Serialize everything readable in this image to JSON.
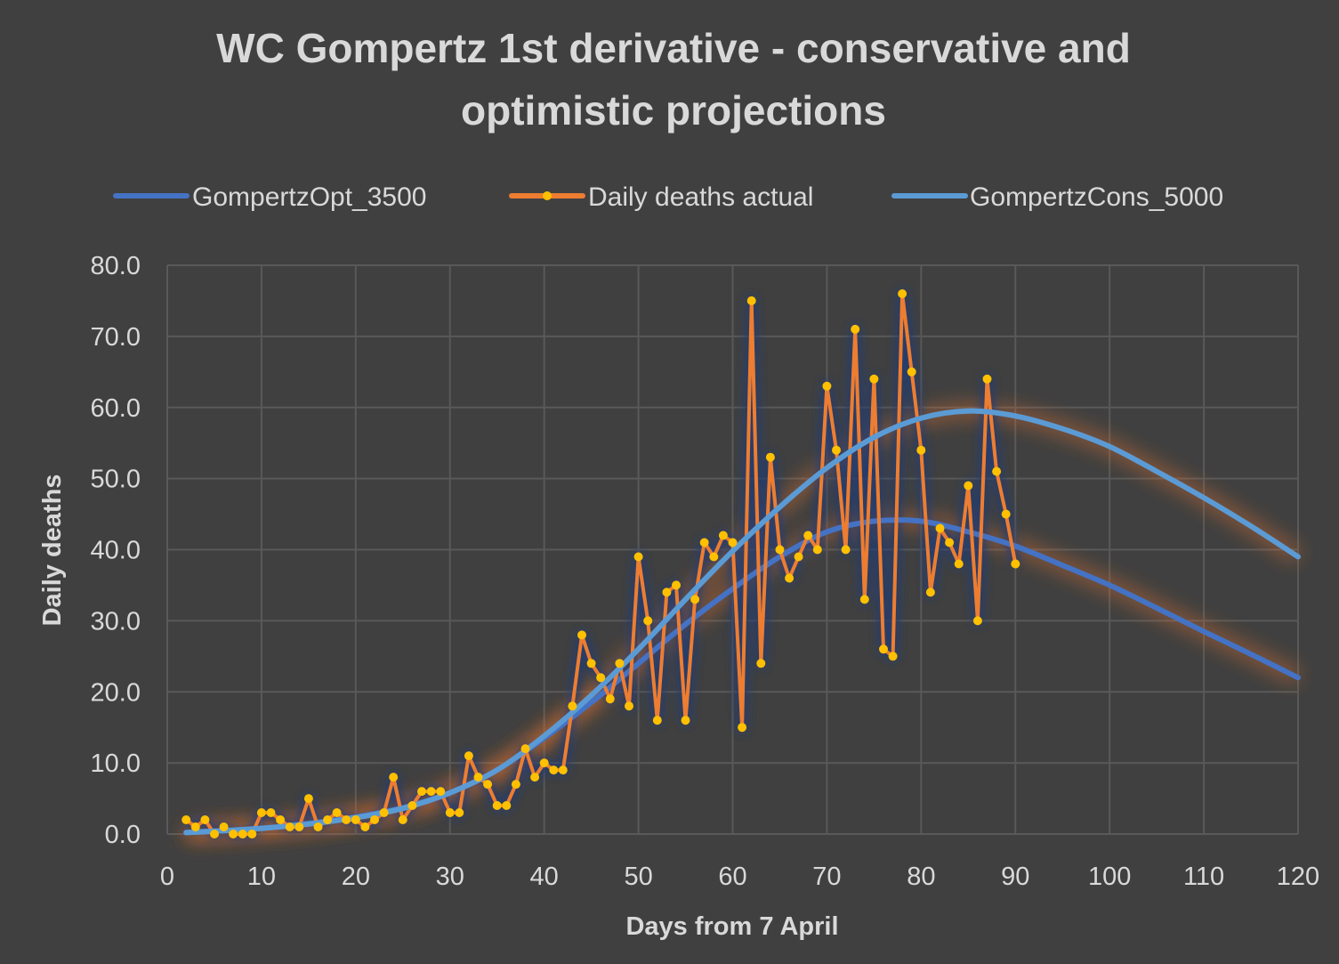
{
  "chart_data": {
    "type": "line",
    "title_line1": "WC Gompertz 1st derivative - conservative and",
    "title_line2": "optimistic projections",
    "xlabel": "Days from 7 April",
    "ylabel": "Daily deaths",
    "xlim": [
      0,
      120
    ],
    "ylim": [
      0,
      80
    ],
    "x_ticks": [
      0,
      10,
      20,
      30,
      40,
      50,
      60,
      70,
      80,
      90,
      100,
      110,
      120
    ],
    "y_ticks": [
      0,
      10,
      20,
      30,
      40,
      50,
      60,
      70,
      80
    ],
    "y_tick_labels": [
      "0.0",
      "10.0",
      "20.0",
      "30.0",
      "40.0",
      "50.0",
      "60.0",
      "70.0",
      "80.0"
    ],
    "grid": true,
    "legend_position": "top",
    "series": [
      {
        "name": "GompertzOpt_3500",
        "color": "#4472c4",
        "x": [
          2,
          5,
          10,
          15,
          20,
          25,
          30,
          35,
          40,
          45,
          50,
          55,
          60,
          65,
          70,
          75,
          80,
          85,
          90,
          95,
          100,
          105,
          110,
          115,
          120
        ],
        "y": [
          0.2,
          0.4,
          0.8,
          1.5,
          2.4,
          3.7,
          5.8,
          9.0,
          13.5,
          18.5,
          24.0,
          29.5,
          34.5,
          39.0,
          42.5,
          44.0,
          44.0,
          42.5,
          40.5,
          37.8,
          35.0,
          31.8,
          28.5,
          25.3,
          22.0
        ]
      },
      {
        "name": "Daily deaths actual",
        "color": "#ed7d31",
        "marker_color": "#ffc000",
        "x": [
          2,
          3,
          4,
          5,
          6,
          7,
          8,
          9,
          10,
          11,
          12,
          13,
          14,
          15,
          16,
          17,
          18,
          19,
          20,
          21,
          22,
          23,
          24,
          25,
          26,
          27,
          28,
          29,
          30,
          31,
          32,
          33,
          34,
          35,
          36,
          37,
          38,
          39,
          40,
          41,
          42,
          43,
          44,
          45,
          46,
          47,
          48,
          49,
          50,
          51,
          52,
          53,
          54,
          55,
          56,
          57,
          58,
          59,
          60,
          61,
          62,
          63,
          64,
          65,
          66,
          67,
          68,
          69,
          70,
          71,
          72,
          73,
          74,
          75,
          76,
          77,
          78,
          79,
          80,
          81,
          82,
          83,
          84,
          85,
          86,
          87,
          88,
          89,
          90
        ],
        "y": [
          2,
          1,
          2,
          0,
          1,
          0,
          0,
          0,
          3,
          3,
          2,
          1,
          1,
          5,
          1,
          2,
          3,
          2,
          2,
          1,
          2,
          3,
          8,
          2,
          4,
          6,
          6,
          6,
          3,
          3,
          11,
          8,
          7,
          4,
          4,
          7,
          12,
          8,
          10,
          9,
          9,
          18,
          28,
          24,
          22,
          19,
          24,
          18,
          39,
          30,
          16,
          34,
          35,
          16,
          33,
          41,
          39,
          42,
          41,
          15,
          75,
          24,
          53,
          40,
          36,
          39,
          42,
          40,
          63,
          54,
          40,
          71,
          33,
          64,
          26,
          25,
          76,
          65,
          54,
          34,
          43,
          41,
          38,
          49,
          30,
          64,
          51,
          45,
          38
        ]
      },
      {
        "name": "GompertzCons_5000",
        "color": "#5b9bd5",
        "x": [
          2,
          5,
          10,
          15,
          20,
          25,
          30,
          35,
          40,
          45,
          50,
          55,
          60,
          65,
          70,
          75,
          80,
          85,
          90,
          95,
          100,
          105,
          110,
          115,
          120
        ],
        "y": [
          0.2,
          0.4,
          0.8,
          1.4,
          2.3,
          3.6,
          5.8,
          9.0,
          13.8,
          19.5,
          26.0,
          33.0,
          39.8,
          46.0,
          51.5,
          55.8,
          58.5,
          59.5,
          58.8,
          57.0,
          54.5,
          51.0,
          47.3,
          43.3,
          39.0
        ]
      }
    ]
  }
}
